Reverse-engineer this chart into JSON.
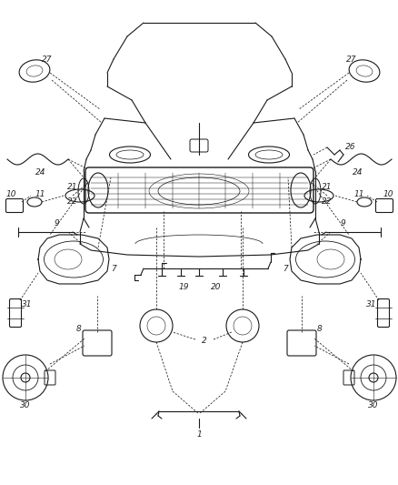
{
  "bg_color": "#ffffff",
  "lc": "#1a1a1a",
  "figsize": [
    4.39,
    5.33
  ],
  "dpi": 100,
  "lw": 0.8,
  "fs": 6.5
}
